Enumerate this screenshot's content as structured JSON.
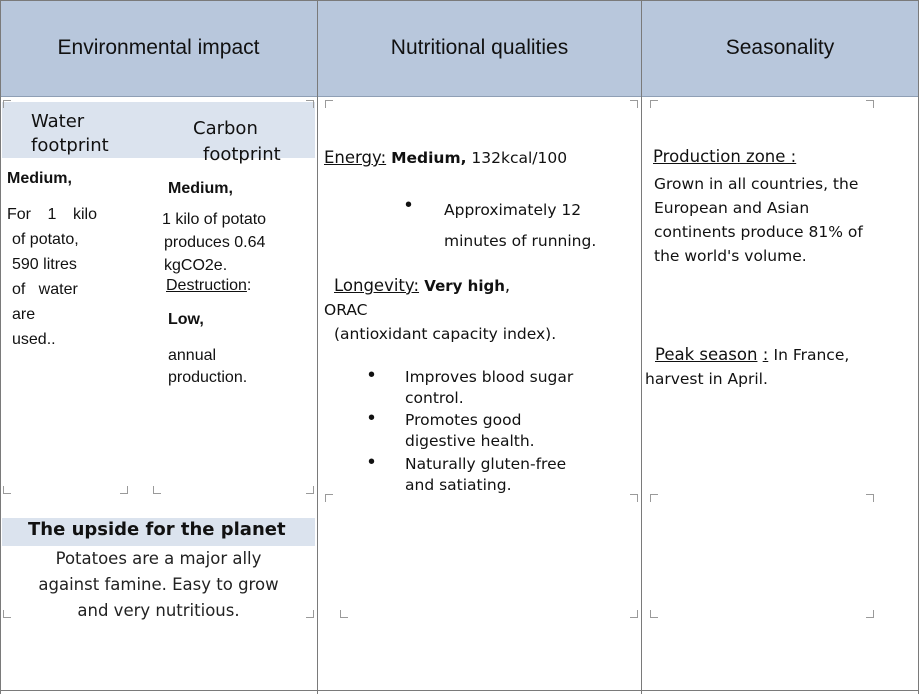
{
  "headers": {
    "environmental": "Environmental impact",
    "nutritional": "Nutritional qualities",
    "seasonality": "Seasonality"
  },
  "environment": {
    "water": {
      "title_line1": "Water",
      "title_line2": "footprint",
      "level": "Medium,",
      "lines": [
        "For 1 kilo",
        "of potato,",
        "590 litres",
        "of   water",
        "are",
        "used.."
      ]
    },
    "carbon": {
      "title_line1": "Carbon",
      "title_line2": "footprint",
      "level": "Medium,",
      "lines": [
        "1 kilo of potato",
        "produces 0.64",
        "kgCO2e."
      ],
      "destruction_label": "Destruction",
      "destruction_colon": ":",
      "destruction_level": "Low,",
      "destruction_lines": [
        "annual",
        "production."
      ]
    },
    "upside": {
      "title": "The upside for the planet",
      "lines": [
        "Potatoes are a major ally",
        "against famine. Easy to grow",
        "and very nutritious."
      ]
    }
  },
  "nutrition": {
    "energy_label": "Energy:",
    "energy_level": "Medium,",
    "energy_value": "132kcal/100",
    "energy_bullet_lines": [
      "Approximately 12",
      "minutes of running."
    ],
    "longevity_label": "Longevity:",
    "longevity_level": "Very high",
    "longevity_comma": ",",
    "orac": "ORAC",
    "orac_desc": "(antioxidant capacity index).",
    "benefits": [
      {
        "line1": "Improves blood sugar",
        "line2": "control."
      },
      {
        "line1": "Promotes good",
        "line2": "digestive health."
      },
      {
        "line1": "Naturally gluten-free",
        "line2": "and satiating."
      }
    ]
  },
  "season": {
    "production_label": "Production zone :",
    "production_lines": [
      "Grown in all countries, the",
      "European and Asian",
      "continents produce 81% of",
      "the world's volume."
    ],
    "peak_label": "Peak season",
    "peak_colon": ":",
    "peak_text": "In France,",
    "peak_line2": "harvest in April."
  }
}
